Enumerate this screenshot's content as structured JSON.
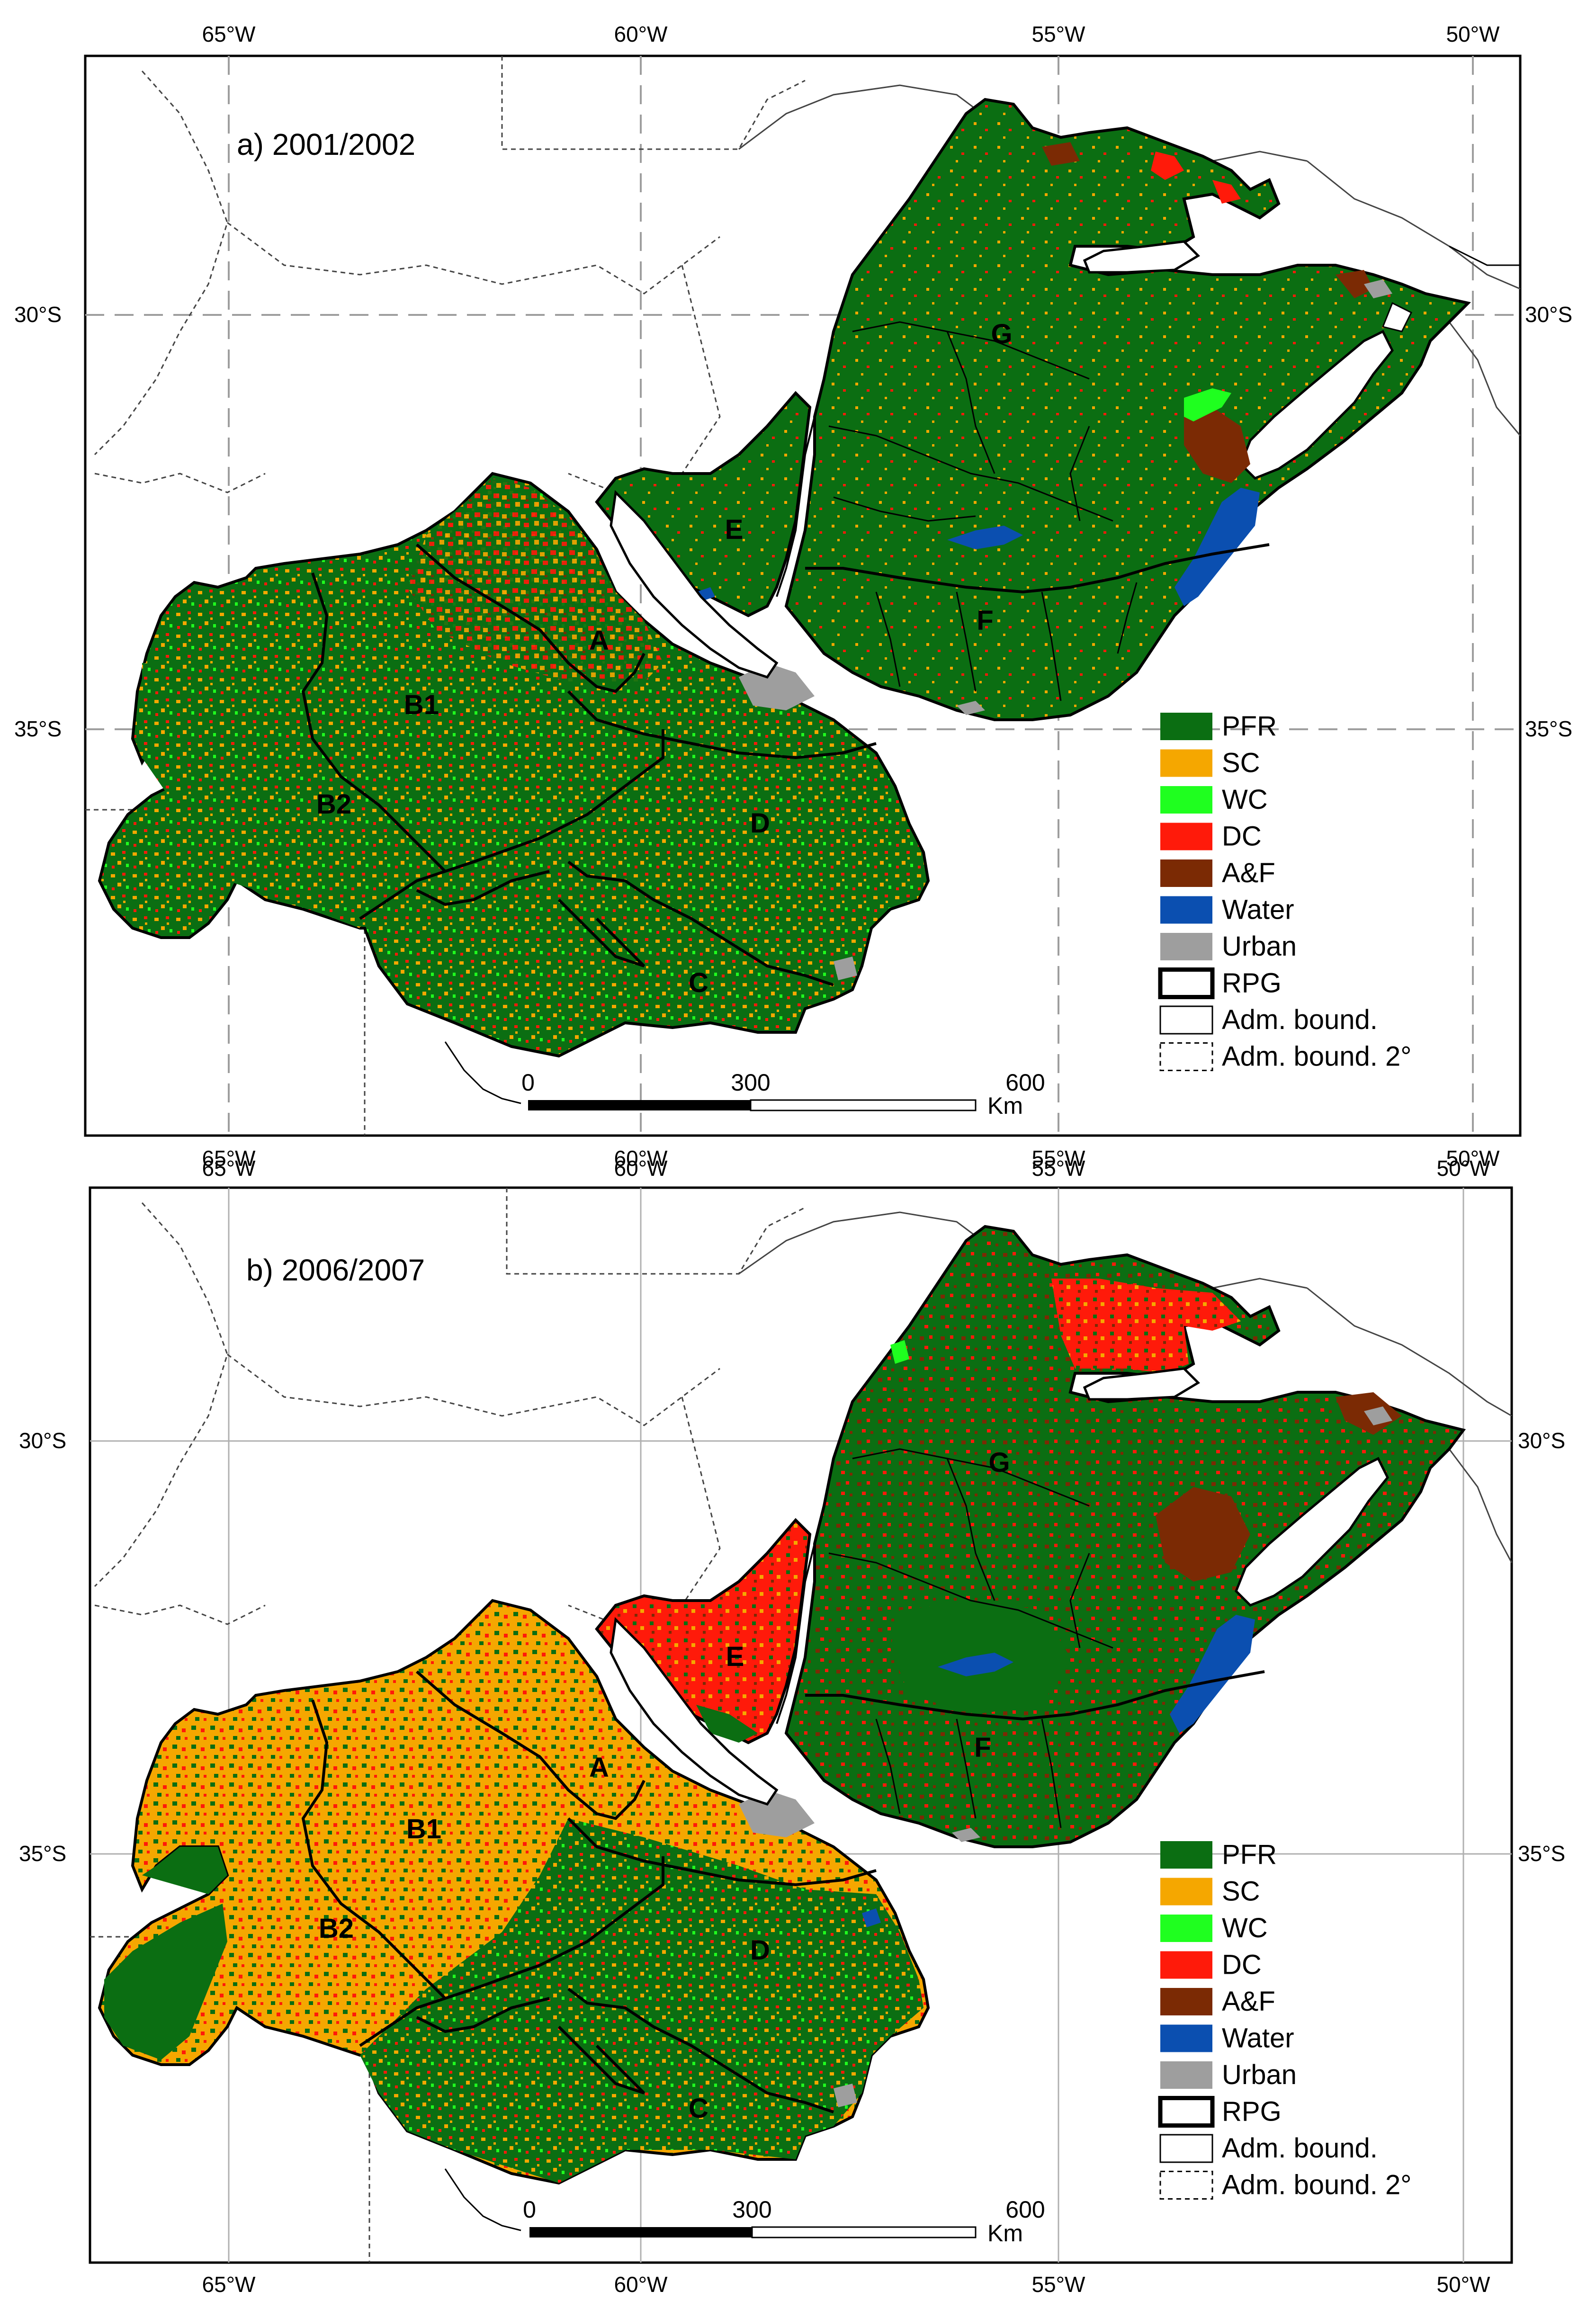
{
  "maps": [
    {
      "label": "a) 2001/2002",
      "axes": {
        "lon_ticks": [
          "65°W",
          "60°W",
          "55°W",
          "50°W"
        ],
        "lat_ticks": [
          "30°S",
          "35°S"
        ]
      },
      "regions": [
        "A",
        "B1",
        "B2",
        "C",
        "D",
        "E",
        "F",
        "G"
      ]
    },
    {
      "label": "b) 2006/2007",
      "axes": {
        "lon_ticks": [
          "65°W",
          "60°W",
          "55°W",
          "50°W"
        ],
        "lat_ticks": [
          "30°S",
          "35°S"
        ]
      },
      "regions": [
        "A",
        "B1",
        "B2",
        "C",
        "D",
        "E",
        "F",
        "G"
      ]
    }
  ],
  "legend": [
    {
      "label": "PFR",
      "color": "#0b6e12",
      "style": "fill"
    },
    {
      "label": "SC",
      "color": "#f5a700",
      "style": "fill"
    },
    {
      "label": "WC",
      "color": "#1fff1f",
      "style": "fill"
    },
    {
      "label": "DC",
      "color": "#ff1a0a",
      "style": "fill"
    },
    {
      "label": "A&F",
      "color": "#7b2a04",
      "style": "fill"
    },
    {
      "label": "Water",
      "color": "#0b4fb0",
      "style": "fill"
    },
    {
      "label": "Urban",
      "color": "#9e9e9e",
      "style": "fill"
    },
    {
      "label": "RPG",
      "color": "#000000",
      "style": "thick"
    },
    {
      "label": "Adm. bound.",
      "color": "#000000",
      "style": "thin"
    },
    {
      "label": "Adm. bound. 2°",
      "color": "#000000",
      "style": "dashed"
    }
  ],
  "scalebar": {
    "ticks": [
      "0",
      "300",
      "600"
    ],
    "unit": "Km"
  },
  "colors": {
    "pfr": "#0b6e12",
    "sc": "#f5a700",
    "wc": "#1fff1f",
    "dc": "#ff1a0a",
    "af": "#7b2a04",
    "water": "#0b4fb0",
    "urban": "#9e9e9e"
  }
}
